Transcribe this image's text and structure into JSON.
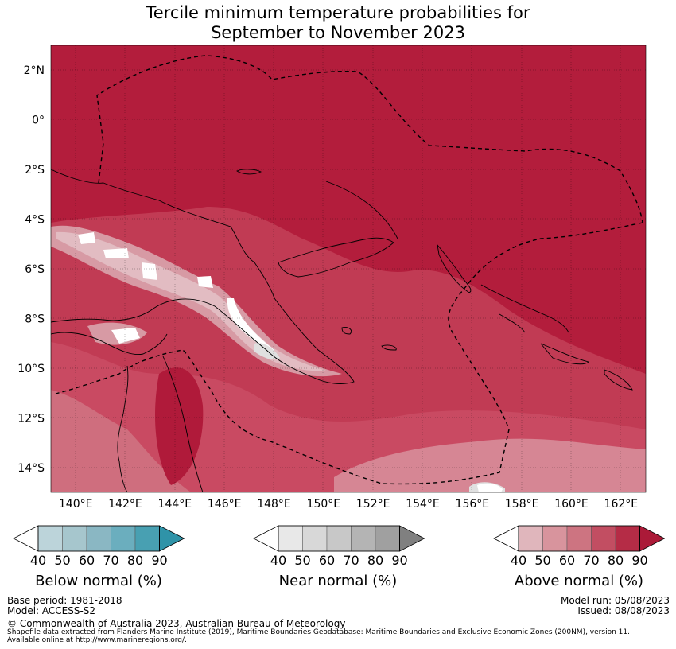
{
  "title": {
    "line1": "Tercile minimum temperature probabilities for",
    "line2": "September to November 2023"
  },
  "map": {
    "lat_labels": [
      "2°N",
      "0°",
      "2°S",
      "4°S",
      "6°S",
      "8°S",
      "10°S",
      "12°S",
      "14°S"
    ],
    "lat_values": [
      2,
      0,
      -2,
      -4,
      -6,
      -8,
      -10,
      -12,
      -14
    ],
    "lon_labels": [
      "140°E",
      "142°E",
      "144°E",
      "146°E",
      "148°E",
      "150°E",
      "152°E",
      "154°E",
      "156°E",
      "158°E",
      "160°E",
      "162°E"
    ],
    "lon_values": [
      140,
      142,
      144,
      146,
      148,
      150,
      152,
      154,
      156,
      158,
      160,
      162
    ],
    "extent": {
      "lon_min": 139,
      "lon_max": 163,
      "lat_min": -15,
      "lat_max": 3
    },
    "dominant_category": "Above normal",
    "dominant_probability": "80-90%"
  },
  "colorbars": {
    "ticks": [
      "40",
      "50",
      "60",
      "70",
      "80",
      "90"
    ],
    "below": {
      "label": "Below normal (%)",
      "colors": [
        "#ffffff",
        "#bcd4da",
        "#a6c6cd",
        "#8ab7c3",
        "#6baebe",
        "#48a0b2",
        "#2f93a8"
      ]
    },
    "near": {
      "label": "Near normal (%)",
      "colors": [
        "#ffffff",
        "#e8e8e8",
        "#d8d8d8",
        "#c8c8c8",
        "#b4b4b4",
        "#a0a0a0",
        "#808080"
      ]
    },
    "above": {
      "label": "Above normal (%)",
      "colors": [
        "#ffffff",
        "#e0b6bc",
        "#d8949d",
        "#cd7481",
        "#c24e62",
        "#b52c46",
        "#ab1a38"
      ]
    }
  },
  "footer": {
    "base_period": "Base period: 1981-2018",
    "model": "Model: ACCESS-S2",
    "model_run": "Model run: 05/08/2023",
    "issued": "Issued: 08/08/2023",
    "copyright": "© Commonwealth of Australia 2023, Australian Bureau of Meteorology",
    "shapefile_line1": "Shapefile data extracted from Flanders Marine Institute (2019), Maritime Boundaries Geodatabase: Maritime Boundaries and Exclusive Economic Zones (200NM), version 11.",
    "shapefile_line2": "Available online at http://www.marineregions.org/."
  }
}
